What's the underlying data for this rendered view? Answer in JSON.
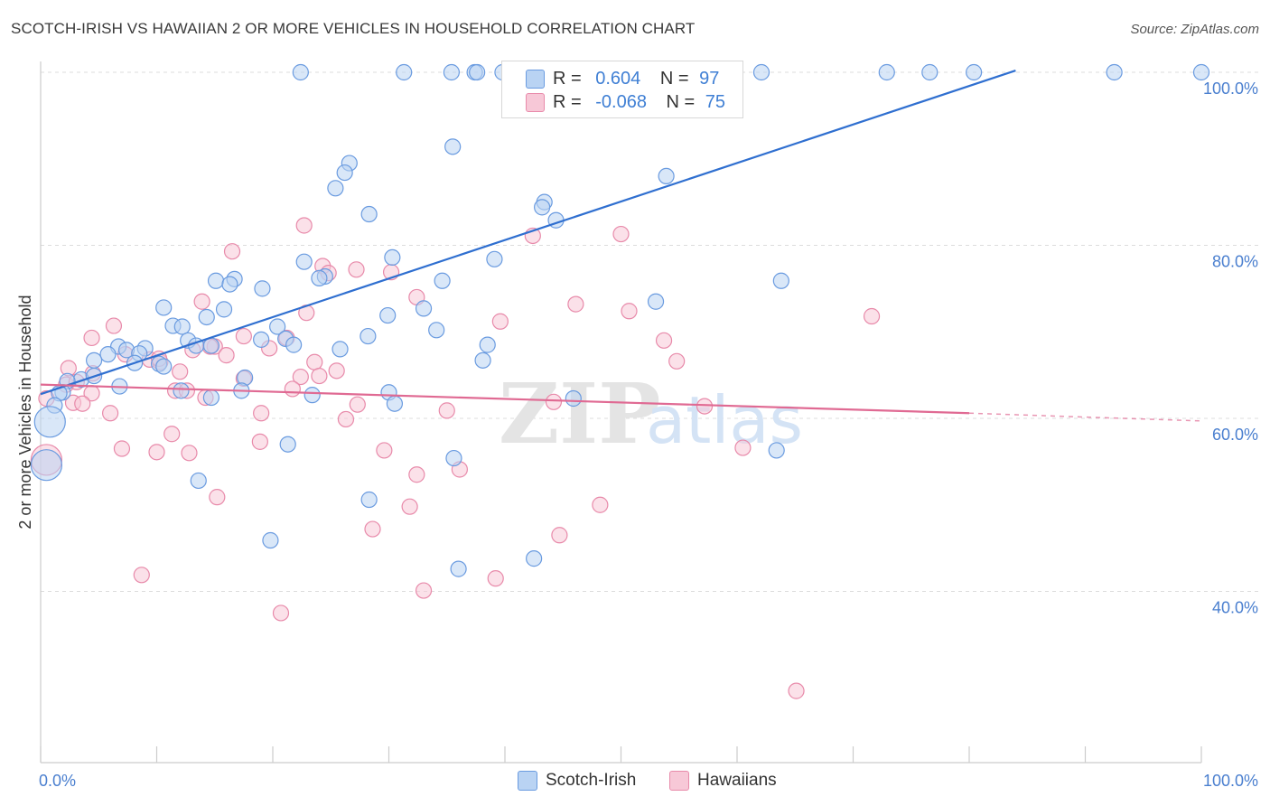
{
  "title": "SCOTCH-IRISH VS HAWAIIAN 2 OR MORE VEHICLES IN HOUSEHOLD CORRELATION CHART",
  "source": "Source: ZipAtlas.com",
  "watermark": {
    "zip": "ZIP",
    "atlas": "atlas"
  },
  "legend_top": {
    "rows": [
      {
        "r_label": "R =",
        "r_value": "0.604",
        "n_label": "N =",
        "n_value": "97"
      },
      {
        "r_label": "R =",
        "r_value": "-0.068",
        "n_label": "N =",
        "n_value": "75"
      }
    ]
  },
  "colors": {
    "blue_fill": "#b9d3f3",
    "blue_stroke": "#6a9be0",
    "blue_line": "#2f6fd0",
    "pink_fill": "#f7c8d7",
    "pink_stroke": "#e88aaa",
    "pink_line": "#e06a93",
    "axis_label": "#4a7fcf",
    "grid": "#dcdcdc"
  },
  "chart_data": {
    "type": "scatter",
    "title": "SCOTCH-IRISH VS HAWAIIAN 2 OR MORE VEHICLES IN HOUSEHOLD CORRELATION CHART",
    "xlabel": "",
    "ylabel": "2 or more Vehicles in Household",
    "xlim": [
      0,
      100
    ],
    "ylim": [
      19.5,
      102.5
    ],
    "x_tick_labels": [
      "0.0%",
      "100.0%"
    ],
    "y_ticks": [
      40,
      60,
      80,
      100
    ],
    "y_tick_labels": [
      "40.0%",
      "60.0%",
      "80.0%",
      "100.0%"
    ],
    "grid": true,
    "legend_position": "bottom",
    "series": [
      {
        "name": "Scotch-Irish",
        "R": 0.604,
        "N": 97,
        "trend": {
          "x": [
            0.0,
            84.0
          ],
          "y": [
            62.8,
            100.2
          ]
        },
        "points": [
          [
            22.4,
            100
          ],
          [
            31.3,
            100
          ],
          [
            35.4,
            100
          ],
          [
            37.4,
            100
          ],
          [
            37.6,
            100
          ],
          [
            39.8,
            100
          ],
          [
            50.8,
            100
          ],
          [
            55.4,
            100
          ],
          [
            62.1,
            100
          ],
          [
            72.9,
            100
          ],
          [
            76.6,
            100
          ],
          [
            80.4,
            100
          ],
          [
            92.5,
            100
          ],
          [
            100,
            100
          ],
          [
            35.5,
            91.4
          ],
          [
            26.6,
            89.5
          ],
          [
            26.2,
            88.4
          ],
          [
            25.4,
            86.6
          ],
          [
            53.9,
            88
          ],
          [
            28.3,
            83.6
          ],
          [
            43.4,
            85
          ],
          [
            43.2,
            84.4
          ],
          [
            44.4,
            82.9
          ],
          [
            30.3,
            78.6
          ],
          [
            39.1,
            78.4
          ],
          [
            22.7,
            78.1
          ],
          [
            15.1,
            75.9
          ],
          [
            16.7,
            76.1
          ],
          [
            16.3,
            75.5
          ],
          [
            24.5,
            76.4
          ],
          [
            24.0,
            76.2
          ],
          [
            34.6,
            75.9
          ],
          [
            19.1,
            75
          ],
          [
            63.8,
            75.9
          ],
          [
            53.0,
            73.5
          ],
          [
            10.6,
            72.8
          ],
          [
            15.8,
            72.6
          ],
          [
            14.3,
            71.7
          ],
          [
            29.9,
            71.9
          ],
          [
            33.0,
            72.7
          ],
          [
            11.4,
            70.7
          ],
          [
            12.2,
            70.6
          ],
          [
            20.4,
            70.6
          ],
          [
            34.1,
            70.2
          ],
          [
            12.7,
            69
          ],
          [
            19.0,
            69.1
          ],
          [
            21.1,
            69.2
          ],
          [
            28.2,
            69.5
          ],
          [
            9.0,
            68.1
          ],
          [
            6.7,
            68.3
          ],
          [
            7.4,
            67.9
          ],
          [
            8.5,
            67.5
          ],
          [
            5.8,
            67.4
          ],
          [
            4.6,
            66.7
          ],
          [
            13.4,
            68.4
          ],
          [
            14.7,
            68.4
          ],
          [
            21.8,
            68.5
          ],
          [
            25.8,
            68
          ],
          [
            38.5,
            68.5
          ],
          [
            10.2,
            66.3
          ],
          [
            10.6,
            66
          ],
          [
            8.1,
            66.4
          ],
          [
            38.1,
            66.7
          ],
          [
            3.5,
            64.5
          ],
          [
            4.6,
            64.9
          ],
          [
            17.6,
            64.7
          ],
          [
            2.3,
            64.3
          ],
          [
            6.8,
            63.7
          ],
          [
            12.1,
            63.2
          ],
          [
            17.3,
            63.2
          ],
          [
            30.0,
            63
          ],
          [
            1.9,
            63
          ],
          [
            1.6,
            62.9
          ],
          [
            23.4,
            62.7
          ],
          [
            14.7,
            62.4
          ],
          [
            45.9,
            62.3
          ],
          [
            30.5,
            61.7
          ],
          [
            1.2,
            61.5
          ],
          [
            0.8,
            59.6
          ],
          [
            0.5,
            54.6
          ],
          [
            21.3,
            57
          ],
          [
            35.6,
            55.4
          ],
          [
            63.4,
            56.3
          ],
          [
            13.6,
            52.8
          ],
          [
            28.3,
            50.6
          ],
          [
            19.8,
            45.9
          ],
          [
            36.0,
            42.6
          ],
          [
            42.5,
            43.8
          ]
        ],
        "big_points": [
          [
            0.8,
            59.6
          ],
          [
            0.5,
            54.6
          ]
        ]
      },
      {
        "name": "Hawaiians",
        "R": -0.068,
        "N": 75,
        "trend": {
          "x": [
            0.0,
            80.0
          ],
          "y": [
            63.9,
            60.6
          ]
        },
        "trend_dashed": {
          "x": [
            80.0,
            100.0
          ],
          "y": [
            60.6,
            59.7
          ]
        },
        "points": [
          [
            22.7,
            82.3
          ],
          [
            42.4,
            81.1
          ],
          [
            50.0,
            81.3
          ],
          [
            16.5,
            79.3
          ],
          [
            27.2,
            77.2
          ],
          [
            30.2,
            76.9
          ],
          [
            24.3,
            77.6
          ],
          [
            24.8,
            76.8
          ],
          [
            32.4,
            74
          ],
          [
            46.1,
            73.2
          ],
          [
            13.9,
            73.5
          ],
          [
            22.9,
            72.2
          ],
          [
            50.7,
            72.4
          ],
          [
            71.6,
            71.8
          ],
          [
            39.6,
            71.2
          ],
          [
            6.3,
            70.7
          ],
          [
            4.4,
            69.3
          ],
          [
            17.5,
            69.5
          ],
          [
            21.2,
            69.3
          ],
          [
            53.7,
            69
          ],
          [
            15.0,
            68.3
          ],
          [
            14.6,
            68.3
          ],
          [
            19.7,
            68.1
          ],
          [
            13.1,
            67.9
          ],
          [
            16.0,
            67.3
          ],
          [
            9.4,
            66.8
          ],
          [
            10.3,
            66.5
          ],
          [
            7.3,
            67.4
          ],
          [
            10.2,
            66.9
          ],
          [
            54.8,
            66.6
          ],
          [
            23.6,
            66.5
          ],
          [
            4.5,
            65.2
          ],
          [
            2.4,
            65.8
          ],
          [
            12.0,
            65.4
          ],
          [
            25.5,
            65.5
          ],
          [
            24.0,
            64.9
          ],
          [
            22.4,
            64.8
          ],
          [
            17.5,
            64.6
          ],
          [
            2.2,
            63.9
          ],
          [
            3.1,
            64.2
          ],
          [
            11.6,
            63.2
          ],
          [
            21.7,
            63.4
          ],
          [
            4.4,
            62.9
          ],
          [
            14.2,
            62.4
          ],
          [
            0.5,
            62.3
          ],
          [
            2.8,
            61.8
          ],
          [
            12.6,
            63.2
          ],
          [
            3.6,
            61.7
          ],
          [
            27.3,
            61.6
          ],
          [
            44.2,
            61.9
          ],
          [
            57.2,
            61.4
          ],
          [
            35.0,
            60.9
          ],
          [
            6.0,
            60.6
          ],
          [
            19.0,
            60.6
          ],
          [
            26.3,
            59.9
          ],
          [
            11.3,
            58.2
          ],
          [
            18.9,
            57.3
          ],
          [
            7.0,
            56.5
          ],
          [
            10.0,
            56.1
          ],
          [
            12.8,
            56
          ],
          [
            29.6,
            56.3
          ],
          [
            60.5,
            56.6
          ],
          [
            36.1,
            54.1
          ],
          [
            32.4,
            53.5
          ],
          [
            15.2,
            50.9
          ],
          [
            31.8,
            49.8
          ],
          [
            48.2,
            50
          ],
          [
            28.6,
            47.2
          ],
          [
            44.7,
            46.5
          ],
          [
            8.7,
            41.9
          ],
          [
            39.2,
            41.5
          ],
          [
            33.0,
            40.1
          ],
          [
            20.7,
            37.5
          ],
          [
            65.1,
            28.5
          ],
          [
            0.5,
            55.2
          ]
        ],
        "big_points": [
          [
            0.5,
            55.2
          ]
        ]
      }
    ]
  },
  "bottom_legend": [
    {
      "label": "Scotch-Irish"
    },
    {
      "label": "Hawaiians"
    }
  ]
}
